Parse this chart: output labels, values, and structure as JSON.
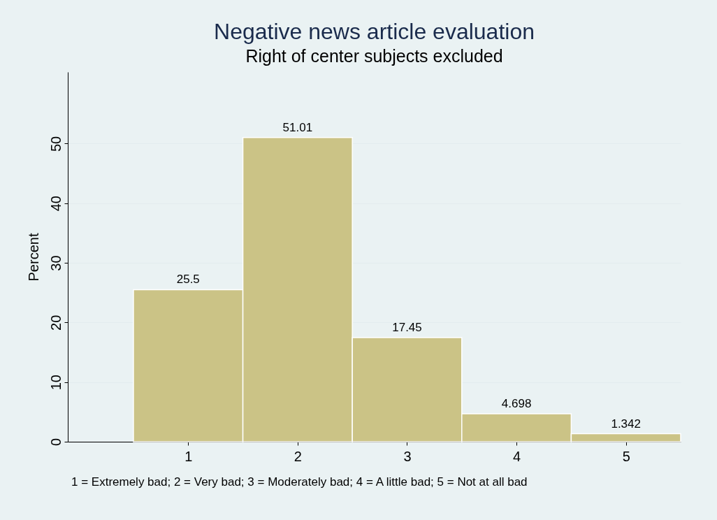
{
  "chart_data": {
    "type": "histogram",
    "title": "Negative news article evaluation",
    "subtitle": "Right of center subjects excluded",
    "ylabel": "Percent",
    "bins": [
      0.5,
      1.5,
      2.5,
      3.5,
      4.5,
      5.5
    ],
    "values": [
      25.5,
      51.01,
      17.45,
      4.698,
      1.342
    ],
    "color": "#cbc386",
    "xlim": [
      -0.1,
      5.5
    ],
    "xticks": [
      1,
      2,
      3,
      4,
      5
    ],
    "ylim": [
      0,
      62
    ],
    "yticks": [
      0,
      10,
      20,
      30,
      40,
      50
    ],
    "grid": "y",
    "data_labels": true,
    "annotations": [
      "1 = Extremely bad; 2 = Very bad; 3 = Moderately bad; 4 = A little bad; 5 = Not at all bad"
    ]
  }
}
